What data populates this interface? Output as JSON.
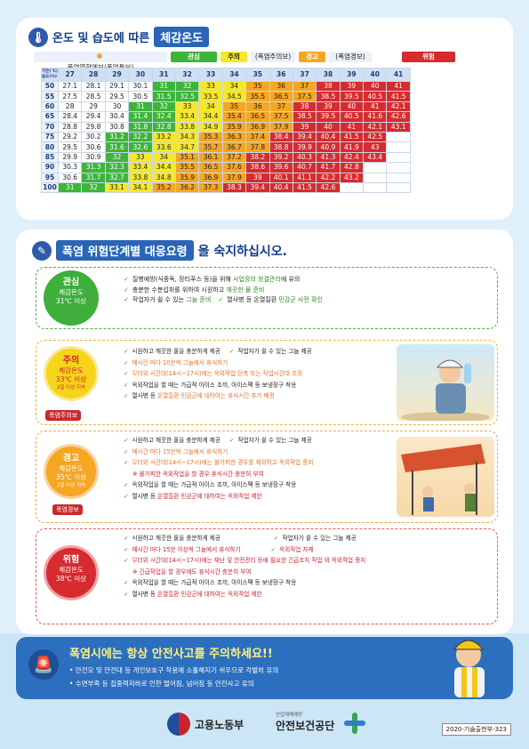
{
  "header": {
    "title_a": "온도 및 습도에 따른",
    "title_b": "체감온도"
  },
  "legend": {
    "forecast": "폭염영향예보(폭염특보)",
    "l1": "관심",
    "l2": "주의",
    "l2n": "(폭염주의보)",
    "l3": "경고",
    "l3n": "(폭염경보)",
    "l4": "위험"
  },
  "table": {
    "corner_top": "기온(℃)",
    "corner_bottom": "습도(%)",
    "temps": [
      "27",
      "28",
      "29",
      "30",
      "31",
      "32",
      "33",
      "34",
      "35",
      "36",
      "37",
      "38",
      "39",
      "40",
      "41"
    ],
    "rows": [
      {
        "h": "50",
        "v": [
          "27.1",
          "28.1",
          "29.1",
          "30.1",
          "31",
          "32",
          "33",
          "34",
          "35",
          "36",
          "37",
          "38",
          "39",
          "40",
          "41"
        ]
      },
      {
        "h": "55",
        "v": [
          "27.5",
          "28.5",
          "29.5",
          "30.5",
          "31.5",
          "32.5",
          "33.5",
          "34.5",
          "35.5",
          "36.5",
          "37.5",
          "38.5",
          "39.5",
          "40.5",
          "41.5"
        ]
      },
      {
        "h": "60",
        "v": [
          "28",
          "29",
          "30",
          "31",
          "32",
          "33",
          "34",
          "35",
          "36",
          "37",
          "38",
          "39",
          "40",
          "41",
          "42.1"
        ]
      },
      {
        "h": "65",
        "v": [
          "28.4",
          "29.4",
          "30.4",
          "31.4",
          "32.4",
          "33.4",
          "34.4",
          "35.4",
          "36.5",
          "37.5",
          "38.5",
          "39.5",
          "40.5",
          "41.6",
          "42.6"
        ]
      },
      {
        "h": "70",
        "v": [
          "28.8",
          "29.8",
          "30.8",
          "31.8",
          "32.8",
          "33.8",
          "34.9",
          "35.9",
          "36.9",
          "37.9",
          "39",
          "40",
          "41",
          "42.1",
          "43.1"
        ]
      },
      {
        "h": "75",
        "v": [
          "29.2",
          "30.2",
          "31.2",
          "32.2",
          "33.2",
          "34.3",
          "35.3",
          "36.3",
          "37.4",
          "38.4",
          "39.4",
          "40.4",
          "41.5",
          "42.5",
          ""
        ]
      },
      {
        "h": "80",
        "v": [
          "29.5",
          "30.6",
          "31.6",
          "32.6",
          "33.6",
          "34.7",
          "35.7",
          "36.7",
          "37.8",
          "38.8",
          "39.9",
          "40.9",
          "41.9",
          "43",
          ""
        ]
      },
      {
        "h": "85",
        "v": [
          "29.9",
          "30.9",
          "32",
          "33",
          "34",
          "35.1",
          "36.1",
          "37.2",
          "38.2",
          "39.2",
          "40.3",
          "41.3",
          "42.4",
          "43.4",
          ""
        ]
      },
      {
        "h": "90",
        "v": [
          "30.3",
          "31.3",
          "32.3",
          "33.4",
          "34.4",
          "35.5",
          "36.5",
          "37.6",
          "38.6",
          "39.6",
          "40.7",
          "41.7",
          "42.8",
          "",
          ""
        ]
      },
      {
        "h": "95",
        "v": [
          "30.6",
          "31.7",
          "32.7",
          "33.8",
          "34.8",
          "35.9",
          "36.9",
          "37.9",
          "39",
          "40.1",
          "41.1",
          "42.2",
          "43.2",
          "",
          ""
        ]
      },
      {
        "h": "100",
        "v": [
          "31",
          "32",
          "33.1",
          "34.1",
          "35.2",
          "36.2",
          "37.3",
          "38.3",
          "39.4",
          "40.4",
          "41.5",
          "42.6",
          "",
          "",
          ""
        ]
      }
    ]
  },
  "section2": {
    "title_a": "폭염 위험단계별 대응요령",
    "title_b": "을 숙지하십시오."
  },
  "level1": {
    "name": "관심",
    "sub": "체감온도",
    "temp": "31℃ 이상",
    "i1a": "질병예방(식중독, 장티푸스 등)을 위해 ",
    "i1b": "사업장의 청결관리",
    "i1c": "에 유의",
    "i2a": "충분한 수분섭취를 위하여 시원하고 ",
    "i2b": "깨끗한 물 준비",
    "i3a": "작업자가 쉴 수 있는 ",
    "i3b": "그늘 준비",
    "i4a": "열사병 등 온열질환 ",
    "i4b": "민감군 사전 확인"
  },
  "level2": {
    "name": "주의",
    "sub": "체감온도",
    "temp": "33℃ 이상",
    "note": "2일 이상 지속",
    "tag": "폭염주의보",
    "i1": "시원하고 깨끗한 물을 충분하게 제공",
    "i1b": "작업자가 쉴 수 있는 그늘 제공",
    "i2": "매시간 마다 10분씩 그늘에서 휴식하기",
    "i3": "무더위 시간대(14시~17시)에는 옥외작업 단축 또는 작업시간대 조정",
    "i4": "옥외작업을 할 때는 가급적 아이스 조끼, 아이스팩 등 보냉장구 착용",
    "i5a": "열사병 등 ",
    "i5b": "온열질환 민감군에 대하여는 휴식시간 추가 배정"
  },
  "level3": {
    "name": "경고",
    "sub": "체감온도",
    "temp": "35℃ 이상",
    "note": "2일 이상 지속",
    "tag": "폭염경보",
    "i1": "시원하고 깨끗한 물을 충분하게 제공",
    "i1b": "작업자가 쉴 수 있는 그늘 제공",
    "i2": "매시간 마다 15분씩 그늘에서 휴식하기",
    "i3": "무더위 시간대(14시~17시)에는 불가피한 경우를 제외하고 옥외작업 중지",
    "i3n": "※ 불가피한 옥외작업을 할 경우 휴식시간 충분히 부여",
    "i4": "옥외작업을 할 때는 가급적 아이스 조끼, 아이스팩 등 보냉장구 착용",
    "i5a": "열사병 등 ",
    "i5b": "온열질환 민감군에 대하여는 옥외작업 제한"
  },
  "level4": {
    "name": "위험",
    "sub": "체감온도",
    "temp": "38℃ 이상",
    "i1": "시원하고 깨끗한 물을 충분하게 제공",
    "i1b": "작업자가 쉴 수 있는 그늘 제공",
    "i2": "매시간 마다 15분 이상씩 그늘에서 휴식하기",
    "i2b": "옥외작업 자제",
    "i3": "무더위 시간대(14시~17시)에는 재난 및 안전관리 등에 필요한 긴급조치 작업 외 옥외작업 중지",
    "i3n": "※ 긴급작업을 할 경우에도 휴식시간 충분히 부여",
    "i4": "옥외작업을 할 때는 가급적 아이스 조끼, 아이스팩 등 보냉장구 착용",
    "i5a": "열사병 등 ",
    "i5b": "온열질환 민감군에 대하여는 옥외작업 제한"
  },
  "banner": {
    "headline": "폭염시에는 항상 안전사고를 주의하세요!!",
    "b1": "• 안전모 및 안전대 등 개인보호구 착용에 소홀해지기 쉬우므로 각별히 유의",
    "b2": "• 수면부족 등 집중력저하로 인한 떨어짐, 넘어짐 등 안전사고 유의"
  },
  "footer": {
    "moel": "고용노동부",
    "kosha_small": "산업재해예방",
    "kosha": "안전보건공단",
    "code": "2020-기술출판부-323"
  },
  "colors": {
    "green": "#3db53a",
    "yellow": "#f5e82a",
    "orange": "#f5a623",
    "red": "#d62b2f"
  }
}
